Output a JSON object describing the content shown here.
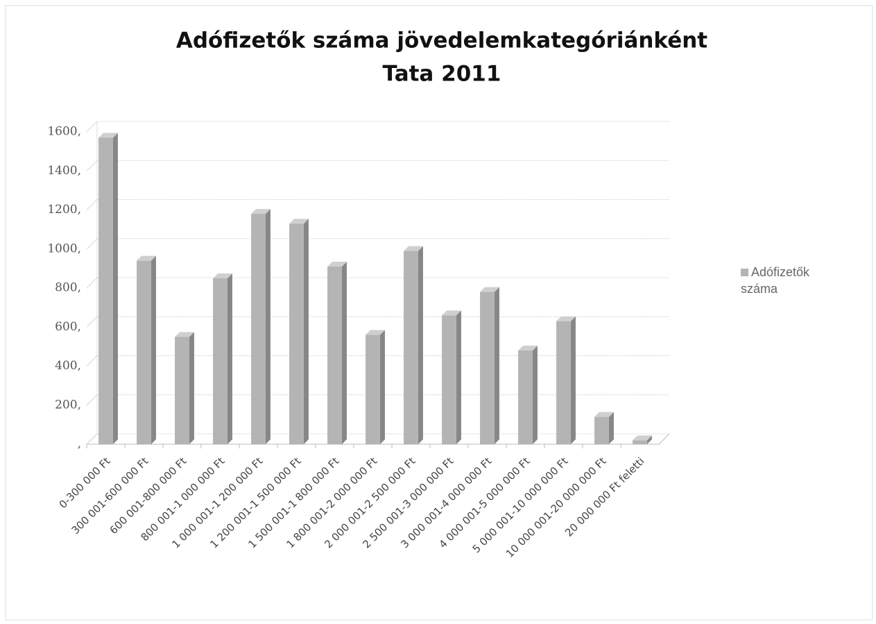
{
  "chart_data": {
    "type": "bar",
    "title": [
      "Adófizetők száma jövedelemkategóriánként",
      "Tata 2011"
    ],
    "categories": [
      "0-300 000 Ft",
      "300 001-600 000 Ft",
      "600 001-800 000 Ft",
      "800 001-1 000 000 Ft",
      "1 000 001-1 200 000 Ft",
      "1 200 001-1 500 000 Ft",
      "1 500 001-1 800 000 Ft",
      "1 800 001-2 000 000 Ft",
      "2 000 001-2 500 000 Ft",
      "2 500 001-3 000 000 Ft",
      "3 000 001-4 000 000 Ft",
      "4 000 001-5 000 000 Ft",
      "5 000 001-10 000 000 Ft",
      "10 000 001-20 000 000 Ft",
      "20 000 000 Ft feletti"
    ],
    "series": [
      {
        "name": "Adófizetők száma",
        "color": "#b4b4b4",
        "values": [
          1570,
          940,
          550,
          850,
          1180,
          1130,
          910,
          560,
          990,
          660,
          780,
          480,
          630,
          140,
          20
        ]
      }
    ],
    "ylim": [
      0,
      1600
    ],
    "yticks": [
      {
        "value": 0,
        "label": ","
      },
      {
        "value": 200,
        "label": "200,"
      },
      {
        "value": 400,
        "label": "400,"
      },
      {
        "value": 600,
        "label": "600,"
      },
      {
        "value": 800,
        "label": "800,"
      },
      {
        "value": 1000,
        "label": "1000,"
      },
      {
        "value": 1200,
        "label": "1200,"
      },
      {
        "value": 1400,
        "label": "1400,"
      },
      {
        "value": 1600,
        "label": "1600,"
      }
    ],
    "grid": true,
    "legend": "right"
  }
}
